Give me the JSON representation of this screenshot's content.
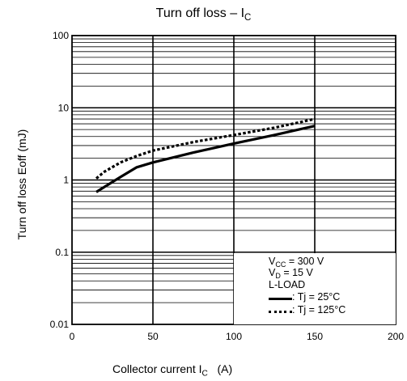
{
  "chart_data": {
    "type": "line",
    "title": "Turn off loss – I",
    "title_sub": "C",
    "xlabel": "Collector current  I",
    "xlabel_sub": "C",
    "xlabel_unit": "(A)",
    "ylabel": "Turn off loss   Eoff    (mJ)",
    "xlim": [
      0,
      200
    ],
    "ylim": [
      0.01,
      100
    ],
    "yscale": "log",
    "grid": true,
    "x_ticks": [
      "0",
      "50",
      "100",
      "150",
      "200"
    ],
    "y_ticks": [
      "0.01",
      "0.1",
      "1",
      "10",
      "100"
    ],
    "series": [
      {
        "name": "Tj = 25°C",
        "style": "solid",
        "x": [
          15,
          20,
          30,
          40,
          50,
          75,
          100,
          125,
          150
        ],
        "y": [
          0.68,
          0.8,
          1.1,
          1.5,
          1.75,
          2.4,
          3.2,
          4.2,
          5.6
        ]
      },
      {
        "name": "Tj = 125°C",
        "style": "dotted",
        "x": [
          15,
          20,
          30,
          40,
          50,
          75,
          100,
          125,
          150
        ],
        "y": [
          1.05,
          1.3,
          1.75,
          2.15,
          2.55,
          3.35,
          4.2,
          5.3,
          7.0
        ]
      }
    ],
    "legend": {
      "position": "bottom-right",
      "conditions": [
        {
          "label": "V",
          "sub": "CC",
          "rest": " = 300 V"
        },
        {
          "label": "V",
          "sub": "D",
          "rest": " = 15 V"
        },
        {
          "label": "L-LOAD",
          "sub": "",
          "rest": ""
        }
      ],
      "entries": [
        ": Tj = 25°C",
        ": Tj = 125°C"
      ]
    }
  }
}
